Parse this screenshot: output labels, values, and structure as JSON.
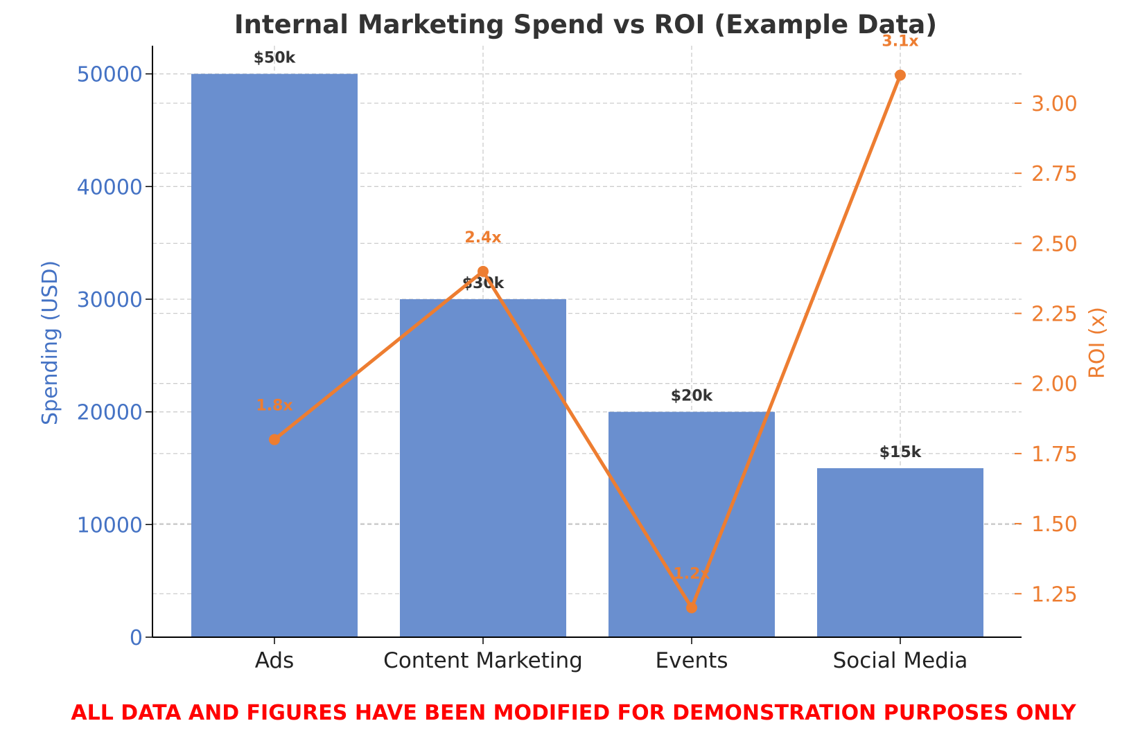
{
  "chart_data": {
    "type": "bar",
    "title": "Internal Marketing Spend vs ROI (Example Data)",
    "categories": [
      "Ads",
      "Content Marketing",
      "Events",
      "Social Media"
    ],
    "series": [
      {
        "axis": "left",
        "type": "bar",
        "values": [
          50000,
          30000,
          20000,
          15000
        ],
        "data_labels": [
          "$50k",
          "$30k",
          "$20k",
          "$15k"
        ],
        "color": "#6a8fcf"
      },
      {
        "axis": "right",
        "type": "line",
        "values": [
          1.8,
          2.4,
          1.2,
          3.1
        ],
        "data_labels": [
          "1.8x",
          "2.4x",
          "1.2x",
          "3.1x"
        ],
        "color": "#ed7d31"
      }
    ],
    "ylabel": "Spending (USD)",
    "ylabel_color": "#4472c4",
    "y2label": "ROI (x)",
    "y2label_color": "#ed7d31",
    "ylim": [
      0,
      52500
    ],
    "y2lim": [
      1.095,
      3.205
    ],
    "yticks": [
      "0",
      "10000",
      "20000",
      "30000",
      "40000",
      "50000"
    ],
    "y2ticks": [
      "1.25",
      "1.50",
      "1.75",
      "2.00",
      "2.25",
      "2.50",
      "2.75",
      "3.00"
    ],
    "grid": true
  },
  "disclaimer": "ALL DATA AND FIGURES HAVE BEEN MODIFIED FOR DEMONSTRATION PURPOSES ONLY"
}
